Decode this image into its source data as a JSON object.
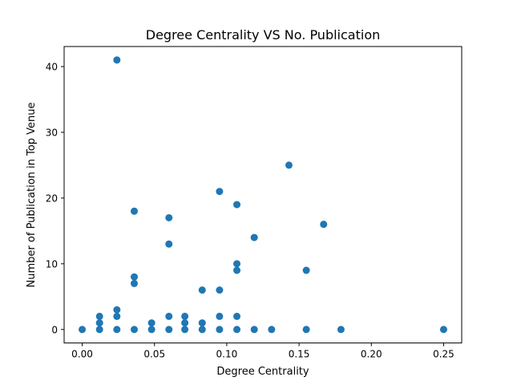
{
  "chart_data": {
    "type": "scatter",
    "title": "Degree Centrality VS No. Publication",
    "xlabel": "Degree Centrality",
    "ylabel": "Number of Publication in Top Venue",
    "xlim": [
      -0.0125,
      0.2625
    ],
    "ylim": [
      -2.05,
      43.05
    ],
    "xticks": [
      {
        "value": 0.0,
        "label": "0.00"
      },
      {
        "value": 0.05,
        "label": "0.05"
      },
      {
        "value": 0.1,
        "label": "0.10"
      },
      {
        "value": 0.15,
        "label": "0.15"
      },
      {
        "value": 0.2,
        "label": "0.20"
      },
      {
        "value": 0.25,
        "label": "0.25"
      }
    ],
    "yticks": [
      {
        "value": 0,
        "label": "0"
      },
      {
        "value": 10,
        "label": "10"
      },
      {
        "value": 20,
        "label": "20"
      },
      {
        "value": 30,
        "label": "30"
      },
      {
        "value": 40,
        "label": "40"
      }
    ],
    "grid": false,
    "marker_color": "#1f77b4",
    "points": [
      {
        "x": 0.0,
        "y": 0
      },
      {
        "x": 0.012,
        "y": 0
      },
      {
        "x": 0.012,
        "y": 1
      },
      {
        "x": 0.012,
        "y": 2
      },
      {
        "x": 0.024,
        "y": 0
      },
      {
        "x": 0.024,
        "y": 2
      },
      {
        "x": 0.024,
        "y": 3
      },
      {
        "x": 0.024,
        "y": 41
      },
      {
        "x": 0.036,
        "y": 0
      },
      {
        "x": 0.036,
        "y": 7
      },
      {
        "x": 0.036,
        "y": 8
      },
      {
        "x": 0.036,
        "y": 18
      },
      {
        "x": 0.048,
        "y": 0
      },
      {
        "x": 0.048,
        "y": 1
      },
      {
        "x": 0.06,
        "y": 0
      },
      {
        "x": 0.06,
        "y": 2
      },
      {
        "x": 0.06,
        "y": 13
      },
      {
        "x": 0.06,
        "y": 17
      },
      {
        "x": 0.071,
        "y": 0
      },
      {
        "x": 0.071,
        "y": 1
      },
      {
        "x": 0.071,
        "y": 2
      },
      {
        "x": 0.083,
        "y": 0
      },
      {
        "x": 0.083,
        "y": 1
      },
      {
        "x": 0.083,
        "y": 6
      },
      {
        "x": 0.095,
        "y": 0
      },
      {
        "x": 0.095,
        "y": 2
      },
      {
        "x": 0.095,
        "y": 6
      },
      {
        "x": 0.095,
        "y": 21
      },
      {
        "x": 0.107,
        "y": 0
      },
      {
        "x": 0.107,
        "y": 2
      },
      {
        "x": 0.107,
        "y": 9
      },
      {
        "x": 0.107,
        "y": 10
      },
      {
        "x": 0.107,
        "y": 19
      },
      {
        "x": 0.119,
        "y": 0
      },
      {
        "x": 0.119,
        "y": 14
      },
      {
        "x": 0.131,
        "y": 0
      },
      {
        "x": 0.143,
        "y": 25
      },
      {
        "x": 0.155,
        "y": 0
      },
      {
        "x": 0.155,
        "y": 9
      },
      {
        "x": 0.167,
        "y": 16
      },
      {
        "x": 0.179,
        "y": 0
      },
      {
        "x": 0.25,
        "y": 0
      }
    ]
  }
}
